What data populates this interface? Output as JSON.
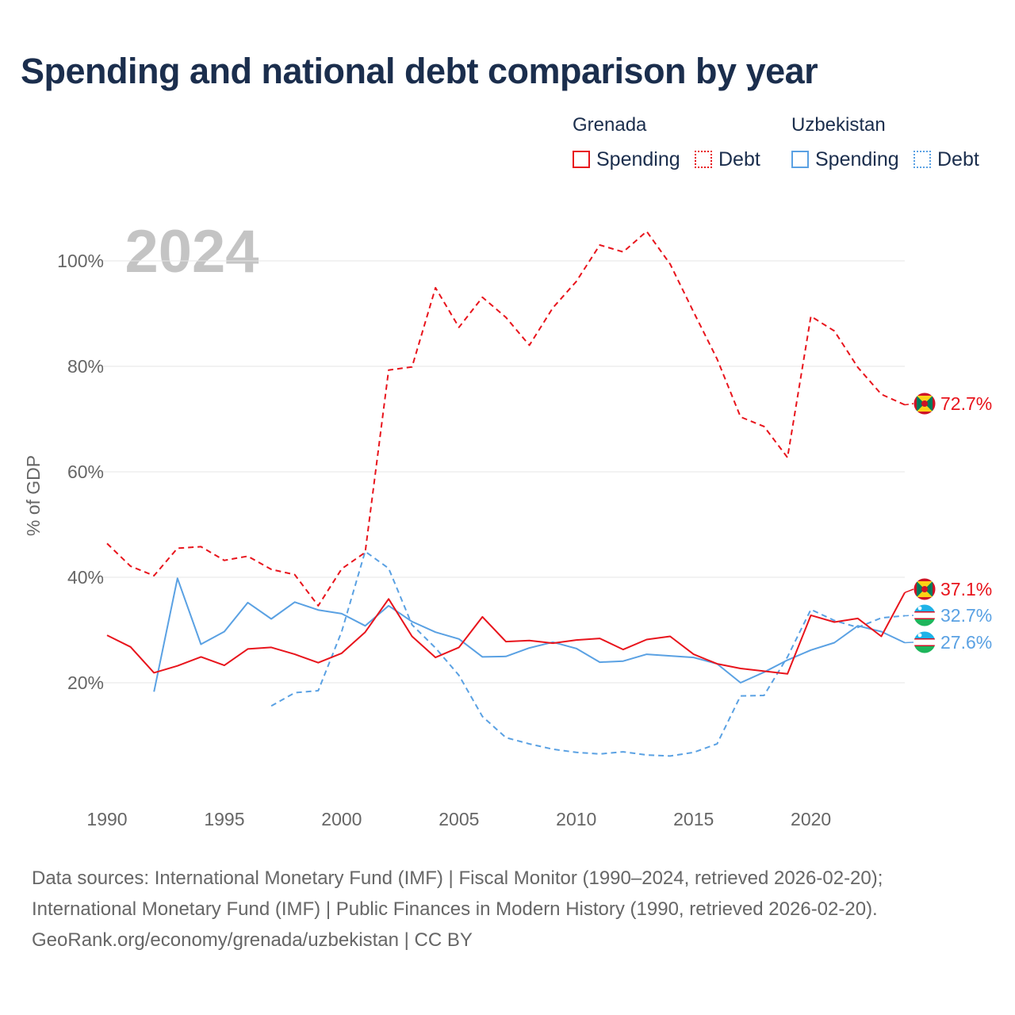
{
  "title": "Spending and national debt comparison by year",
  "legend": {
    "groups": [
      {
        "name": "Grenada",
        "color": "#e8141c",
        "items": [
          "Spending",
          "Debt"
        ]
      },
      {
        "name": "Uzbekistan",
        "color": "#5aa1e3",
        "items": [
          "Spending",
          "Debt"
        ]
      }
    ]
  },
  "footer": {
    "line1": "Data sources: International Monetary Fund (IMF) | Fiscal Monitor (1990–2024, retrieved 2026-02-20);",
    "line2": "International Monetary Fund (IMF) | Public Finances in Modern History (1990, retrieved 2026-02-20).",
    "line3": "GeoRank.org/economy/grenada/uzbekistan | CC BY"
  },
  "chart_data": {
    "type": "line",
    "year_label": "2024",
    "ylabel": "% of GDP",
    "xlim": [
      1990,
      2024
    ],
    "ylim": [
      0,
      110
    ],
    "x_ticks": [
      1990,
      1995,
      2000,
      2005,
      2010,
      2015,
      2020
    ],
    "x_tick_labels": [
      "1990",
      "1995",
      "2000",
      "2005",
      "2010",
      "2015",
      "2020"
    ],
    "y_ticks": [
      20,
      40,
      60,
      80,
      100
    ],
    "y_tick_labels": [
      "20%",
      "40%",
      "60%",
      "80%",
      "100%"
    ],
    "grid": true,
    "series": [
      {
        "name": "Grenada Spending",
        "country": "Grenada",
        "metric": "Spending",
        "color": "#e8141c",
        "dash": "solid",
        "x": [
          1990,
          1991,
          1992,
          1993,
          1994,
          1995,
          1996,
          1997,
          1998,
          1999,
          2000,
          2001,
          2002,
          2003,
          2004,
          2005,
          2006,
          2007,
          2008,
          2009,
          2010,
          2011,
          2012,
          2013,
          2014,
          2015,
          2016,
          2017,
          2018,
          2019,
          2020,
          2021,
          2022,
          2023,
          2024
        ],
        "values": [
          29.0,
          26.8,
          21.9,
          23.2,
          24.9,
          23.3,
          26.4,
          26.7,
          25.4,
          23.8,
          25.6,
          29.6,
          35.9,
          28.8,
          24.8,
          26.7,
          32.5,
          27.8,
          28.0,
          27.5,
          28.1,
          28.4,
          26.3,
          28.2,
          28.8,
          25.4,
          23.6,
          22.7,
          22.2,
          21.7,
          32.8,
          31.5,
          32.2,
          28.8,
          37.1
        ],
        "end_label": "37.1%"
      },
      {
        "name": "Grenada Debt",
        "country": "Grenada",
        "metric": "Debt",
        "color": "#e8141c",
        "dash": "dashed",
        "x": [
          1990,
          1991,
          1992,
          1993,
          1994,
          1995,
          1996,
          1997,
          1998,
          1999,
          2000,
          2001,
          2002,
          2003,
          2004,
          2005,
          2006,
          2007,
          2008,
          2009,
          2010,
          2011,
          2012,
          2013,
          2014,
          2015,
          2016,
          2017,
          2018,
          2019,
          2020,
          2021,
          2022,
          2023,
          2024
        ],
        "values": [
          46.4,
          42.1,
          40.3,
          45.5,
          45.8,
          43.2,
          44.0,
          41.5,
          40.5,
          34.6,
          41.6,
          44.7,
          79.3,
          79.9,
          94.9,
          87.4,
          93.1,
          89.3,
          84.0,
          91.1,
          96.1,
          103.0,
          101.7,
          105.6,
          99.4,
          90.3,
          81.4,
          70.4,
          68.6,
          62.7,
          89.5,
          86.7,
          79.8,
          74.7,
          72.7
        ],
        "end_label": "72.7%"
      },
      {
        "name": "Uzbekistan Spending",
        "country": "Uzbekistan",
        "metric": "Spending",
        "color": "#5aa1e3",
        "dash": "solid",
        "x": [
          1992,
          1993,
          1994,
          1995,
          1996,
          1997,
          1998,
          1999,
          2000,
          2001,
          2002,
          2003,
          2004,
          2005,
          2006,
          2007,
          2008,
          2009,
          2010,
          2011,
          2012,
          2013,
          2014,
          2015,
          2016,
          2017,
          2018,
          2019,
          2020,
          2021,
          2022,
          2023,
          2024
        ],
        "values": [
          18.3,
          39.8,
          27.3,
          29.7,
          35.2,
          32.1,
          35.3,
          33.8,
          33.1,
          30.8,
          34.6,
          31.6,
          29.6,
          28.3,
          24.9,
          25.0,
          26.6,
          27.7,
          26.5,
          23.9,
          24.1,
          25.4,
          25.1,
          24.8,
          23.6,
          20.0,
          22.0,
          24.3,
          26.2,
          27.6,
          30.8,
          29.7,
          27.6
        ],
        "end_label": "27.6%"
      },
      {
        "name": "Uzbekistan Debt",
        "country": "Uzbekistan",
        "metric": "Debt",
        "color": "#5aa1e3",
        "dash": "dashed",
        "x": [
          1997,
          1998,
          1999,
          2000,
          2001,
          2002,
          2003,
          2004,
          2005,
          2006,
          2007,
          2008,
          2009,
          2010,
          2011,
          2012,
          2013,
          2014,
          2015,
          2016,
          2017,
          2018,
          2019,
          2020,
          2021,
          2022,
          2023,
          2024
        ],
        "values": [
          15.6,
          18.1,
          18.5,
          29.7,
          44.9,
          41.7,
          31.0,
          26.6,
          21.4,
          13.6,
          9.6,
          8.4,
          7.4,
          6.8,
          6.5,
          6.9,
          6.3,
          6.1,
          6.8,
          8.4,
          17.5,
          17.6,
          24.9,
          33.9,
          31.8,
          30.5,
          32.3,
          32.7
        ],
        "end_label": "32.7%"
      }
    ]
  }
}
